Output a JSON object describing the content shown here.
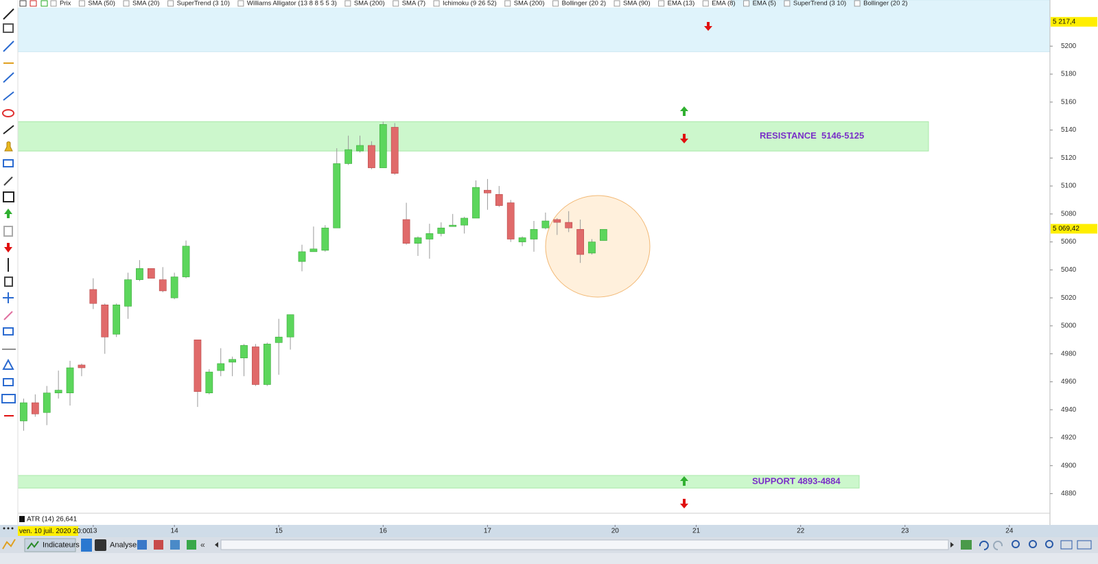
{
  "toolbar": {
    "indicators": [
      "Prix",
      "SMA (50)",
      "SMA (20)",
      "SuperTrend (3 10)",
      "Williams Alligator (13 8 8 5 5 3)",
      "SMA (200)",
      "SMA (7)",
      "Ichimoku (9 26 52)",
      "SMA (200)",
      "Bollinger (20 2)",
      "SMA (90)",
      "EMA (13)",
      "EMA (8)",
      "EMA (5)",
      "SuperTrend (3 10)",
      "Bollinger (20 2)"
    ]
  },
  "chart_data": {
    "type": "candlestick",
    "open": [
      4932,
      4945,
      4938,
      4952,
      4952,
      4972,
      5026,
      5015,
      4994,
      5014,
      5033,
      5041,
      5033,
      5020,
      5035,
      4990,
      4952,
      4968,
      4974,
      4977,
      4985,
      4958,
      4988,
      4992,
      5046,
      5053,
      5054,
      5070,
      5116,
      5125,
      5129,
      5113,
      5142,
      5076,
      5059,
      5062,
      5066,
      5071,
      5072,
      5077,
      5097,
      5094,
      5088,
      5060,
      5062,
      5070,
      5076,
      5074,
      5069,
      5052,
      5061
    ],
    "high": [
      4948,
      4951,
      4957,
      4968,
      4975,
      4973,
      5034,
      5016,
      5016,
      5038,
      5047,
      5041,
      5042,
      5038,
      5061,
      4990,
      4969,
      4984,
      4978,
      4987,
      4987,
      4988,
      5005,
      5008,
      5058,
      5071,
      5072,
      5127,
      5136,
      5136,
      5132,
      5146,
      5145,
      5088,
      5064,
      5073,
      5074,
      5080,
      5078,
      5104,
      5105,
      5100,
      5090,
      5064,
      5075,
      5081,
      5077,
      5082,
      5076,
      5062,
      5069
    ],
    "low": [
      4925,
      4935,
      4929,
      4948,
      4943,
      4964,
      5012,
      4980,
      4992,
      5005,
      5032,
      5034,
      5024,
      5019,
      5034,
      4942,
      4951,
      4964,
      4964,
      4964,
      4957,
      4957,
      4965,
      4983,
      5039,
      5053,
      5053,
      5070,
      5115,
      5124,
      5112,
      5113,
      5108,
      5058,
      5050,
      5048,
      5064,
      5071,
      5066,
      5077,
      5083,
      5085,
      5060,
      5057,
      5053,
      5069,
      5065,
      5067,
      5045,
      5051,
      5061
    ],
    "close": [
      4945,
      4937,
      4952,
      4954,
      4970,
      4970,
      5016,
      4992,
      5015,
      5033,
      5041,
      5034,
      5025,
      5035,
      5057,
      4953,
      4967,
      4973,
      4976,
      4986,
      4958,
      4987,
      4992,
      5008,
      5053,
      5055,
      5070,
      5116,
      5126,
      5129,
      5113,
      5144,
      5109,
      5059,
      5063,
      5066,
      5070,
      5072,
      5077,
      5099,
      5095,
      5086,
      5062,
      5063,
      5069,
      5075,
      5074,
      5070,
      5051,
      5060,
      5069
    ],
    "up_color": "#5cd65c",
    "down_color": "#e06a6a",
    "xlim": [
      -0.5,
      88.5
    ],
    "xticks": [
      {
        "value": 6,
        "label": "13"
      },
      {
        "value": 13,
        "label": "14"
      },
      {
        "value": 22,
        "label": "15"
      },
      {
        "value": 31,
        "label": "16"
      },
      {
        "value": 40,
        "label": "17"
      },
      {
        "value": 51,
        "label": "20"
      },
      {
        "value": 58,
        "label": "21"
      },
      {
        "value": 67,
        "label": "22"
      },
      {
        "value": 76,
        "label": "23"
      },
      {
        "value": 85,
        "label": "24"
      }
    ],
    "ylim": [
      4866,
      5233
    ],
    "yticks": [
      4880,
      4900,
      4920,
      4940,
      4960,
      4980,
      5000,
      5020,
      5040,
      5060,
      5080,
      5100,
      5120,
      5140,
      5160,
      5180,
      5200
    ],
    "price_markers": [
      {
        "value": 5217.4,
        "label": "5 217,4"
      },
      {
        "value": 5069.42,
        "label": "5 069,42"
      }
    ],
    "zones": [
      {
        "range": [
          5196,
          5233
        ],
        "color": "#dff3fb"
      },
      {
        "label": "RESISTANCE  5146-5125",
        "range": [
          5146,
          5125
        ],
        "color": "#ccf7cc"
      },
      {
        "label": "SUPPORT 4893-4884",
        "range": [
          4893,
          4884
        ],
        "color": "#ccf7cc"
      }
    ]
  },
  "footer": {
    "date": "ven. 10 juil. 2020 20:00",
    "atr": "ATR (14) 26,641",
    "buttons": [
      "Indicateurs",
      "Analyser"
    ]
  }
}
